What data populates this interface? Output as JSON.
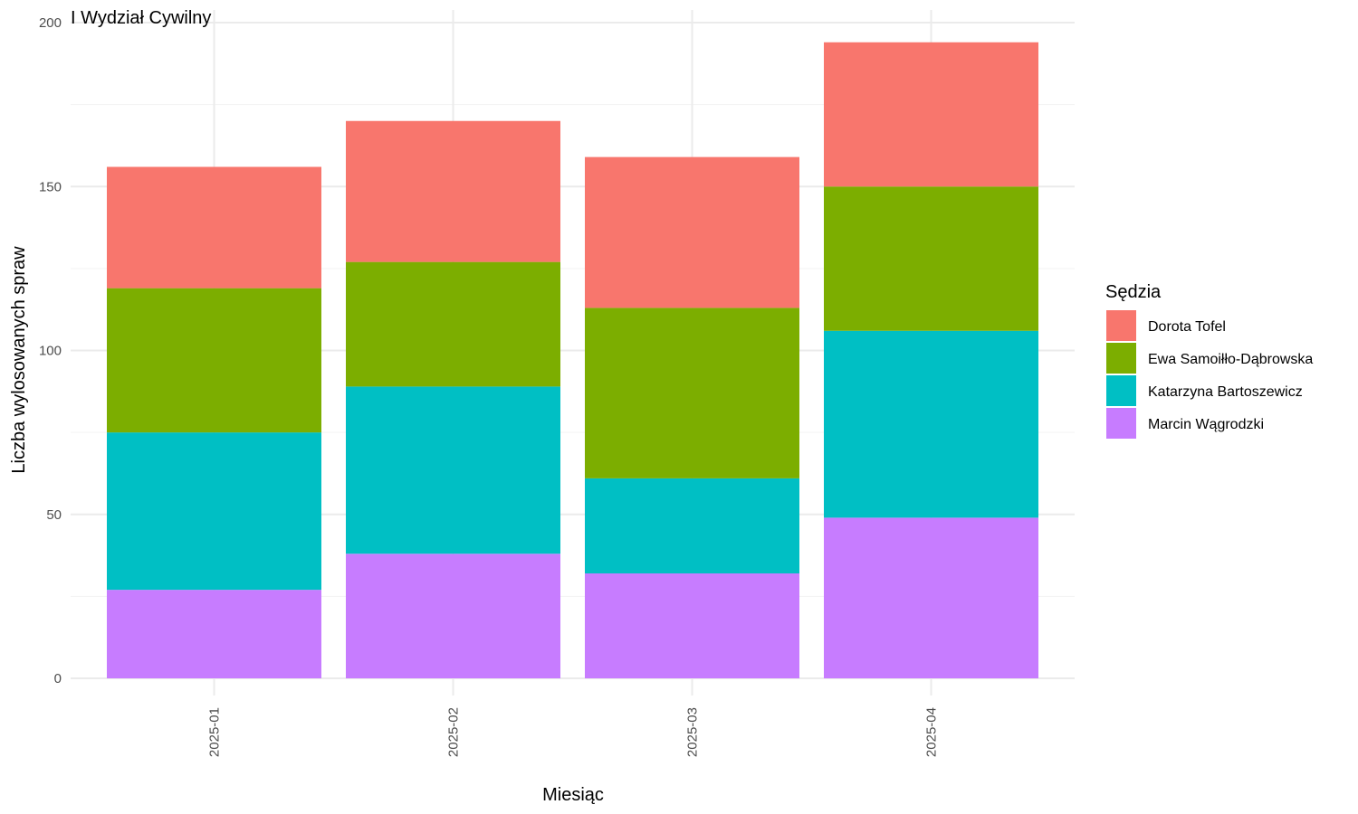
{
  "chart_data": {
    "type": "bar",
    "stacked": true,
    "title": "I Wydział Cywilny",
    "xlabel": "Miesiąc",
    "ylabel": "Liczba wylosowanych spraw",
    "ylim": [
      0,
      200
    ],
    "yticks": [
      0,
      50,
      100,
      150,
      200
    ],
    "grid": true,
    "legend_title": "Sędzia",
    "legend_position": "right",
    "categories": [
      "2025-01",
      "2025-02",
      "2025-03",
      "2025-04"
    ],
    "series": [
      {
        "name": "Dorota Tofel",
        "color": "#F8766D",
        "values": [
          37,
          43,
          46,
          44
        ]
      },
      {
        "name": "Ewa Samoiłło-Dąbrowska",
        "color": "#7CAE00",
        "values": [
          44,
          38,
          52,
          44
        ]
      },
      {
        "name": "Katarzyna Bartoszewicz",
        "color": "#00BFC4",
        "values": [
          48,
          51,
          29,
          57
        ]
      },
      {
        "name": "Marcin Wągrodzki",
        "color": "#C77CFF",
        "values": [
          27,
          38,
          32,
          49
        ]
      }
    ]
  }
}
